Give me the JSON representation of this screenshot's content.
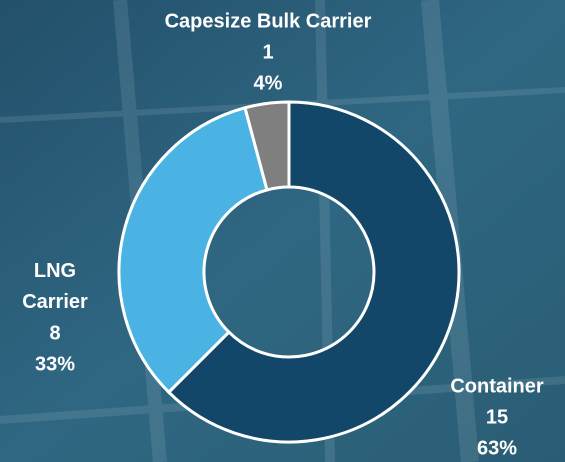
{
  "chart_data": {
    "type": "donut",
    "categories": [
      "Container",
      "LNG Carrier",
      "Capesize Bulk Carrier"
    ],
    "values": [
      15,
      8,
      1
    ],
    "percent_labels": [
      "63%",
      "33%",
      "4%"
    ],
    "colors": [
      "#12476a",
      "#4ab3e3",
      "#7f7f7f"
    ]
  }
}
